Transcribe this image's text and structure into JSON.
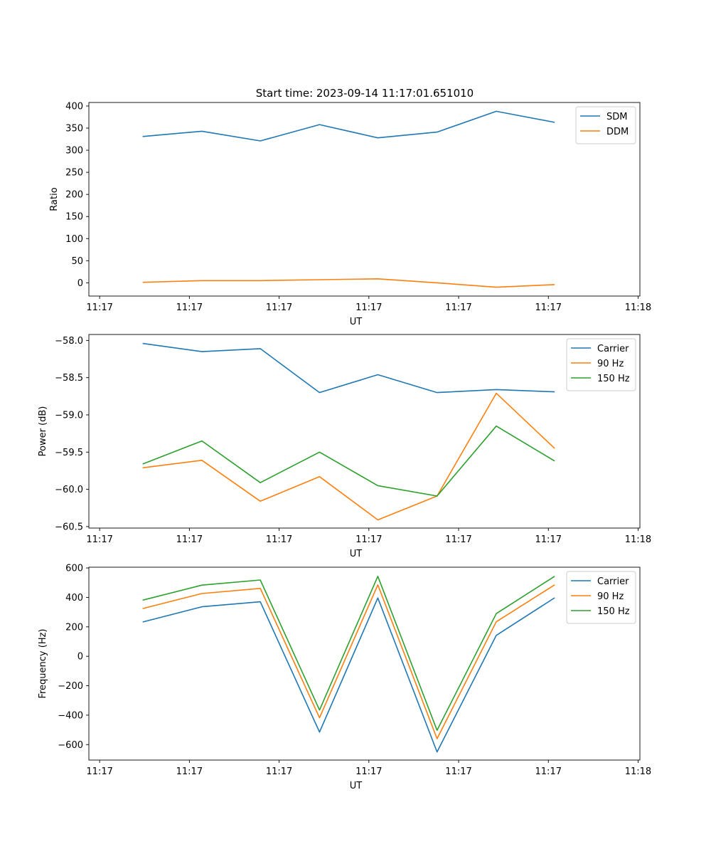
{
  "figure": {
    "title": "Start time: 2023-09-14 11:17:01.651010"
  },
  "chart_data": [
    {
      "type": "line",
      "title": "Start time: 2023-09-14 11:17:01.651010",
      "xlabel": "UT",
      "ylabel": "Ratio",
      "x_tick_labels": [
        "11:17",
        "11:17",
        "11:17",
        "11:17",
        "11:17",
        "11:17",
        "11:18"
      ],
      "x_tick_values": [
        0,
        1,
        2,
        3,
        4,
        5,
        6
      ],
      "xlim": [
        -0.12,
        6.02
      ],
      "x": [
        0.48,
        1.14,
        1.79,
        2.45,
        3.1,
        3.76,
        4.42,
        5.07
      ],
      "ylim": [
        -30,
        408
      ],
      "y_ticks": [
        0,
        50,
        100,
        150,
        200,
        250,
        300,
        350,
        400
      ],
      "legend_position": "upper right",
      "grid": false,
      "series": [
        {
          "name": "SDM",
          "color": "#1f77b4",
          "values": [
            331,
            343,
            321,
            358,
            328,
            341,
            388,
            363
          ]
        },
        {
          "name": "DDM",
          "color": "#ff7f0e",
          "values": [
            1,
            5,
            5,
            7,
            9,
            0,
            -10,
            -4
          ]
        }
      ]
    },
    {
      "type": "line",
      "title": "",
      "xlabel": "UT",
      "ylabel": "Power (dB)",
      "x_tick_labels": [
        "11:17",
        "11:17",
        "11:17",
        "11:17",
        "11:17",
        "11:17",
        "11:18"
      ],
      "x_tick_values": [
        0,
        1,
        2,
        3,
        4,
        5,
        6
      ],
      "xlim": [
        -0.12,
        6.02
      ],
      "x": [
        0.48,
        1.14,
        1.79,
        2.45,
        3.1,
        3.76,
        4.42,
        5.07
      ],
      "ylim": [
        -60.52,
        -57.92
      ],
      "y_ticks": [
        -58.0,
        -58.5,
        -59.0,
        -59.5,
        -60.0,
        -60.5
      ],
      "y_tick_labels": [
        "−58.0",
        "−58.5",
        "−59.0",
        "−59.5",
        "−60.0",
        "−60.5"
      ],
      "legend_position": "upper right",
      "grid": false,
      "series": [
        {
          "name": "Carrier",
          "color": "#1f77b4",
          "values": [
            -58.04,
            -58.15,
            -58.11,
            -58.7,
            -58.46,
            -58.7,
            -58.66,
            -58.69
          ]
        },
        {
          "name": "90 Hz",
          "color": "#ff7f0e",
          "values": [
            -59.71,
            -59.61,
            -60.16,
            -59.83,
            -60.41,
            -60.09,
            -58.71,
            -59.45
          ]
        },
        {
          "name": "150 Hz",
          "color": "#2ca02c",
          "values": [
            -59.66,
            -59.35,
            -59.91,
            -59.5,
            -59.95,
            -60.09,
            -59.15,
            -59.62
          ]
        }
      ]
    },
    {
      "type": "line",
      "title": "",
      "xlabel": "UT",
      "ylabel": "Frequency (Hz)",
      "x_tick_labels": [
        "11:17",
        "11:17",
        "11:17",
        "11:17",
        "11:17",
        "11:17",
        "11:18"
      ],
      "x_tick_values": [
        0,
        1,
        2,
        3,
        4,
        5,
        6
      ],
      "xlim": [
        -0.12,
        6.02
      ],
      "x": [
        0.48,
        1.14,
        1.79,
        2.45,
        3.1,
        3.76,
        4.42,
        5.07
      ],
      "ylim": [
        -705,
        605
      ],
      "y_ticks": [
        600,
        400,
        200,
        0,
        -200,
        -400,
        -600
      ],
      "y_tick_labels": [
        "600",
        "400",
        "200",
        "0",
        "−200",
        "−400",
        "−600"
      ],
      "legend_position": "upper right",
      "grid": false,
      "series": [
        {
          "name": "Carrier",
          "color": "#1f77b4",
          "values": [
            233,
            336,
            370,
            -515,
            396,
            -650,
            142,
            397
          ]
        },
        {
          "name": "90 Hz",
          "color": "#ff7f0e",
          "values": [
            324,
            426,
            461,
            -418,
            485,
            -560,
            234,
            485
          ]
        },
        {
          "name": "150 Hz",
          "color": "#2ca02c",
          "values": [
            381,
            483,
            518,
            -365,
            543,
            -503,
            290,
            543
          ]
        }
      ]
    }
  ]
}
